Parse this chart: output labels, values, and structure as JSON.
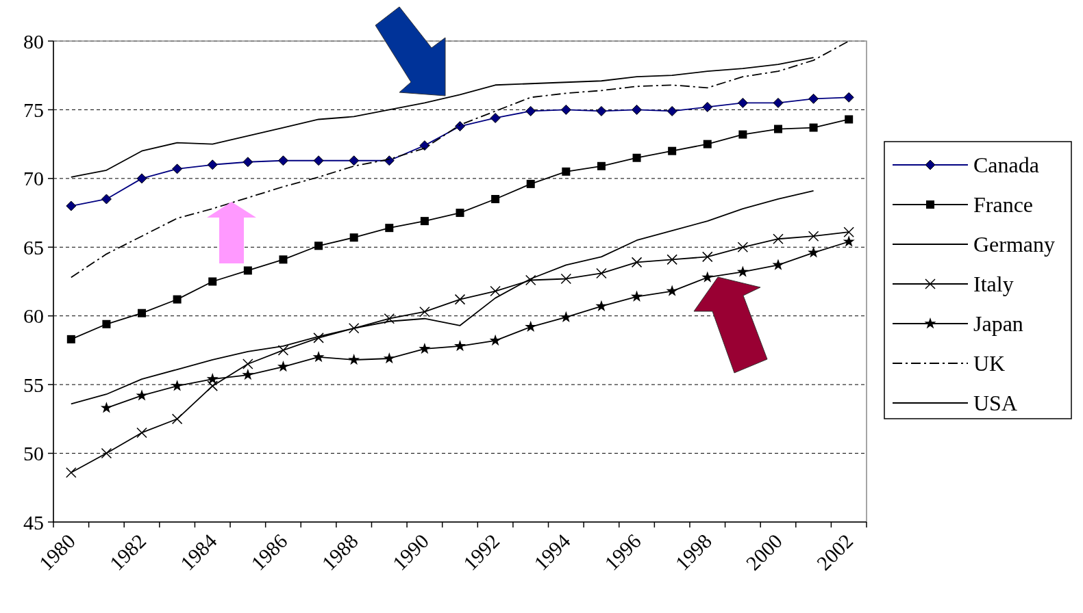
{
  "chart_data": {
    "type": "line",
    "categories": [
      "1980",
      null,
      "1982",
      null,
      "1984",
      null,
      "1986",
      null,
      "1988",
      null,
      "1990",
      null,
      "1992",
      null,
      "1994",
      null,
      "1996",
      null,
      "1998",
      null,
      "2000",
      null,
      "2002"
    ],
    "ylim": [
      45,
      80
    ],
    "yticks": [
      45,
      50,
      55,
      60,
      65,
      70,
      75,
      80
    ],
    "grid": "y",
    "legend": "right",
    "series": [
      {
        "name": "Canada",
        "color": "#000080",
        "marker": "diamond",
        "values": [
          68.0,
          68.5,
          70.0,
          70.7,
          71.0,
          71.2,
          71.3,
          71.3,
          71.3,
          71.3,
          72.4,
          73.8,
          74.4,
          74.9,
          75.0,
          74.9,
          75.0,
          74.9,
          75.2,
          75.5,
          75.5,
          75.8,
          75.9
        ]
      },
      {
        "name": "France",
        "color": "#000000",
        "marker": "square",
        "values": [
          58.3,
          59.4,
          60.2,
          61.2,
          62.5,
          63.3,
          64.1,
          65.1,
          65.7,
          66.4,
          66.9,
          67.5,
          68.5,
          69.6,
          70.5,
          70.9,
          71.5,
          72.0,
          72.5,
          73.2,
          73.6,
          73.7,
          74.3
        ]
      },
      {
        "name": "Germany",
        "color": "#000000",
        "marker": "none",
        "values": [
          53.6,
          54.3,
          55.4,
          56.1,
          56.8,
          57.4,
          57.8,
          58.5,
          59.1,
          59.6,
          59.8,
          59.3,
          61.3,
          62.7,
          63.7,
          64.3,
          65.5,
          66.2,
          66.9,
          67.8,
          68.5,
          69.1,
          null
        ]
      },
      {
        "name": "Italy",
        "color": "#000000",
        "marker": "cross",
        "values": [
          48.6,
          50.0,
          51.5,
          52.5,
          54.9,
          56.5,
          57.5,
          58.4,
          59.1,
          59.8,
          60.3,
          61.2,
          61.8,
          62.6,
          62.7,
          63.1,
          63.9,
          64.1,
          64.3,
          65.0,
          65.6,
          65.8,
          66.1
        ]
      },
      {
        "name": "Japan",
        "color": "#000000",
        "marker": "star",
        "values": [
          null,
          53.3,
          54.2,
          54.9,
          55.4,
          55.7,
          56.3,
          57.0,
          56.8,
          56.9,
          57.6,
          57.8,
          58.2,
          59.2,
          59.9,
          60.7,
          61.4,
          61.8,
          62.8,
          63.2,
          63.7,
          64.6,
          65.4
        ]
      },
      {
        "name": "UK",
        "color": "#000000",
        "marker": "none",
        "line_style": "dashed",
        "values": [
          62.8,
          64.5,
          65.8,
          67.1,
          67.8,
          68.6,
          69.4,
          70.1,
          70.9,
          71.4,
          72.2,
          73.9,
          74.9,
          75.9,
          76.2,
          76.4,
          76.7,
          76.8,
          76.6,
          77.4,
          77.8,
          78.6,
          80.0
        ]
      },
      {
        "name": "USA",
        "color": "#000000",
        "marker": "none",
        "values": [
          70.1,
          70.6,
          72.0,
          72.6,
          72.5,
          73.1,
          73.7,
          74.3,
          74.5,
          75.0,
          75.5,
          76.1,
          76.8,
          76.9,
          77.0,
          77.1,
          77.4,
          77.5,
          77.8,
          78.0,
          78.3,
          78.8,
          null
        ]
      }
    ]
  }
}
